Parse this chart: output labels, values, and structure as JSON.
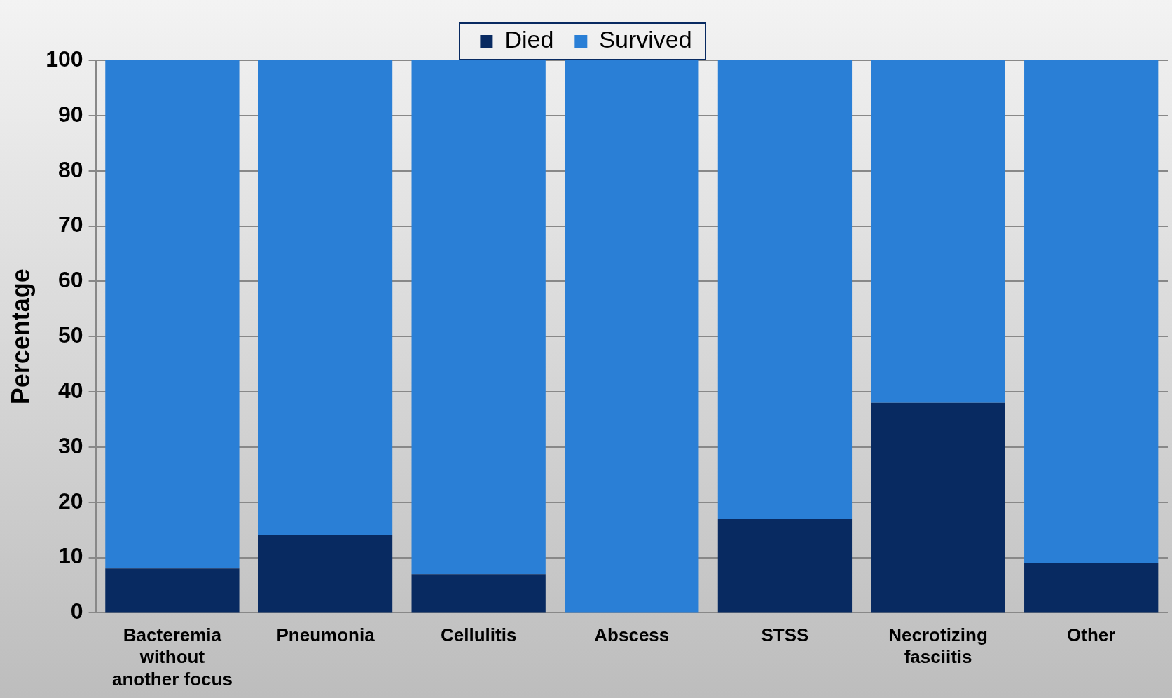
{
  "chart_data": {
    "type": "bar",
    "stacked": true,
    "ylabel": "Percentage",
    "categories": [
      "Bacteremia without another focus",
      "Pneumonia",
      "Cellulitis",
      "Abscess",
      "STSS",
      "Necrotizing fasciitis",
      "Other"
    ],
    "series": [
      {
        "name": "Died",
        "color": "#082a61",
        "values": [
          8,
          14,
          7,
          0,
          17,
          38,
          9
        ]
      },
      {
        "name": "Survived",
        "color": "#2a7fd6",
        "values": [
          92,
          86,
          93,
          100,
          83,
          62,
          91
        ]
      }
    ],
    "ylim": [
      0,
      100
    ],
    "yticks": [
      0,
      10,
      20,
      30,
      40,
      50,
      60,
      70,
      80,
      90,
      100
    ],
    "grid": "y",
    "legend": "top"
  }
}
